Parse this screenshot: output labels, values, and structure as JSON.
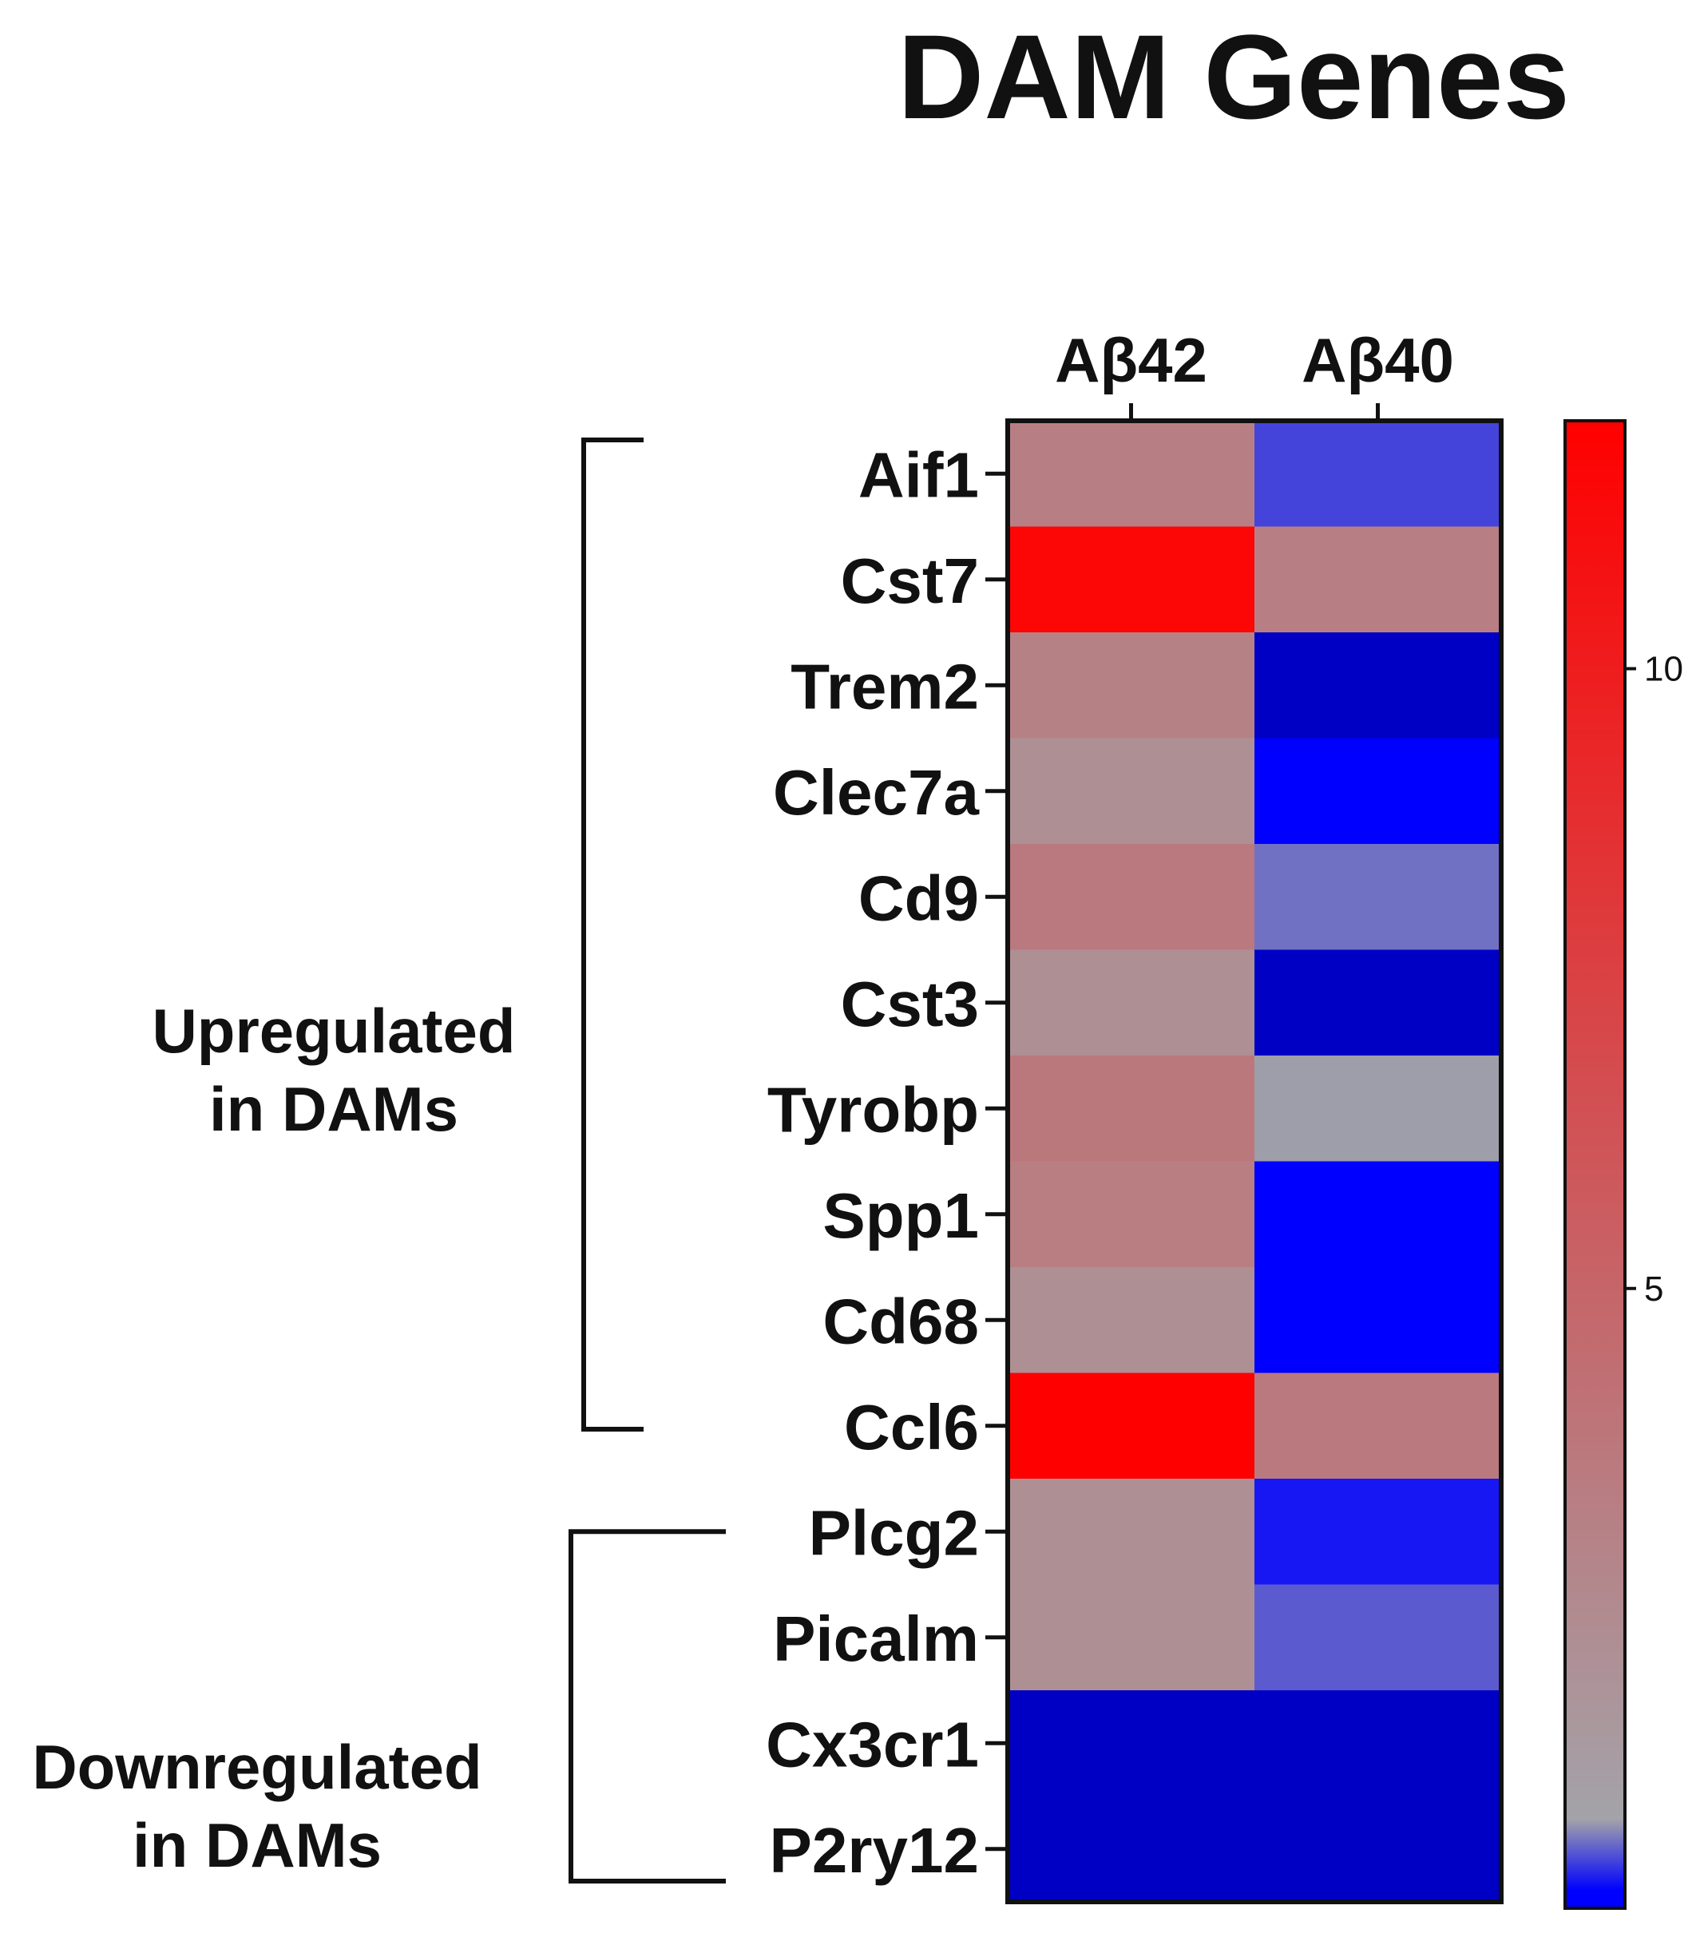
{
  "chart_data": {
    "type": "heatmap",
    "title": "DAM Genes",
    "columns": [
      "Aβ42",
      "Aβ40"
    ],
    "rows": [
      "Aif1",
      "Cst7",
      "Trem2",
      "Clec7a",
      "Cd9",
      "Cst3",
      "Tyrobp",
      "Spp1",
      "Cd68",
      "Ccl6",
      "Plcg2",
      "Picalm",
      "Cx3cr1",
      "P2ry12"
    ],
    "values": [
      [
        3.2,
        0.3
      ],
      [
        11.6,
        3.2
      ],
      [
        3.1,
        -0.3
      ],
      [
        2.1,
        0.0
      ],
      [
        3.6,
        0.5
      ],
      [
        2.1,
        -0.3
      ],
      [
        3.7,
        0.7
      ],
      [
        3.3,
        0.0
      ],
      [
        2.1,
        0.0
      ],
      [
        12.0,
        3.6
      ],
      [
        2.1,
        0.1
      ],
      [
        2.1,
        0.4
      ],
      [
        -0.3,
        -0.3
      ],
      [
        -0.3,
        -0.3
      ]
    ],
    "color_scale": {
      "min": 0,
      "max": 12,
      "low_color": "#0000ff",
      "mid_color": "#a3a3a9",
      "high_color": "#ff0000",
      "below_min_color": "#0000c4",
      "ticks": [
        5,
        10
      ]
    },
    "groups": [
      {
        "label_lines": [
          "Upregulated",
          "in  DAMs"
        ],
        "rows": [
          "Aif1",
          "Ccl6"
        ]
      },
      {
        "label_lines": [
          "Downregulated",
          "in  DAMs"
        ],
        "rows": [
          "Plcg2",
          "P2ry12"
        ]
      }
    ]
  }
}
